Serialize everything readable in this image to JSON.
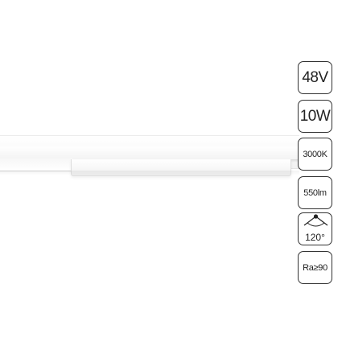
{
  "specs": {
    "voltage": "48V",
    "power": "10W",
    "color_temperature": "3000K",
    "luminous_flux": "550lm",
    "beam_angle": "120°",
    "cri": "Ra≥90"
  },
  "icons": {
    "beam_angle": "beam-angle-icon"
  },
  "colors": {
    "background": "#ffffff",
    "fixture": "#f5f5f5",
    "border": "#333333",
    "text": "#222222"
  }
}
